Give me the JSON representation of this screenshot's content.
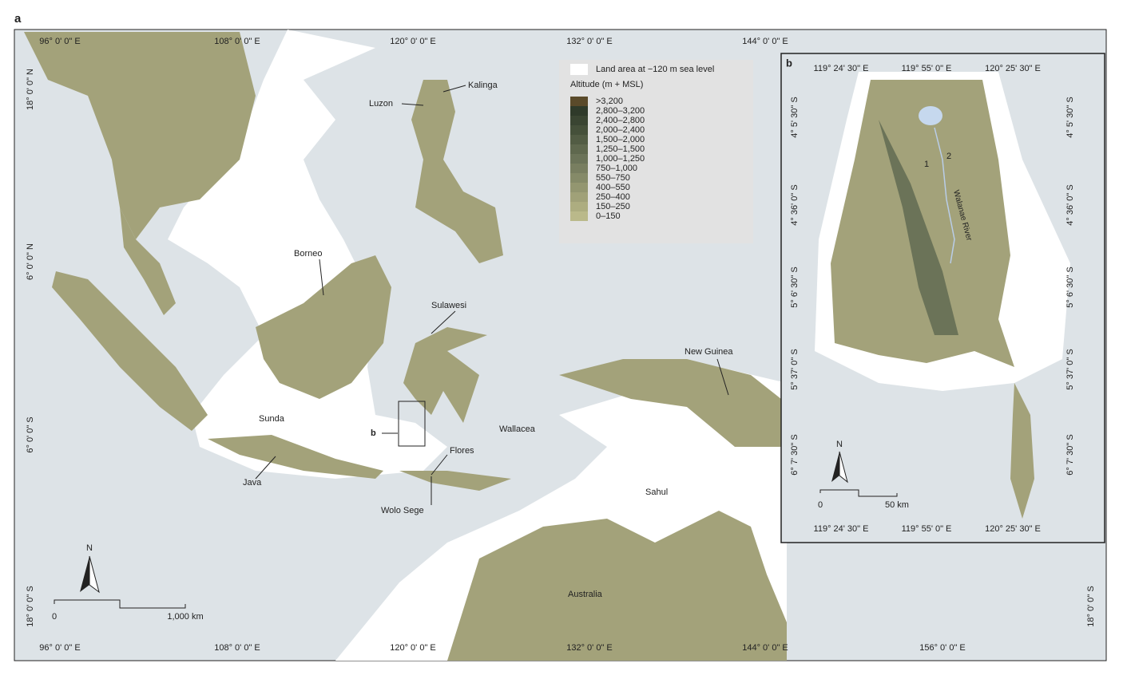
{
  "panel_a": {
    "label": "a",
    "lon_labels": [
      "96° 0' 0\" E",
      "108° 0' 0\" E",
      "120° 0' 0\" E",
      "132° 0' 0\" E",
      "144° 0' 0\" E",
      "156° 0' 0\" E"
    ],
    "lat_labels": [
      "18° 0' 0\" N",
      "6° 0' 0\" N",
      "6° 0' 0\" S",
      "18° 0' 0\" S"
    ],
    "places": [
      "Kalinga",
      "Luzon",
      "Borneo",
      "Sulawesi",
      "New Guinea",
      "Sunda",
      "Wallacea",
      "b",
      "Flores",
      "Java",
      "Wolo Sege",
      "Sahul",
      "Australia"
    ],
    "north": "N",
    "scale_labels": [
      "0",
      "1,000 km"
    ]
  },
  "legend": {
    "land_area": "Land area at −120 m sea level",
    "title": "Altitude (m + MSL)",
    "classes": [
      {
        "label": ">3,200",
        "color": "#5a4a2a"
      },
      {
        "label": "2,800–3,200",
        "color": "#2f3a2a"
      },
      {
        "label": "2,400–2,800",
        "color": "#3a4532"
      },
      {
        "label": "2,000–2,400",
        "color": "#45503a"
      },
      {
        "label": "1,500–2,000",
        "color": "#525c44"
      },
      {
        "label": "1,250–1,500",
        "color": "#5f684e"
      },
      {
        "label": "1,000–1,250",
        "color": "#6b7358"
      },
      {
        "label": "750–1,000",
        "color": "#787e60"
      },
      {
        "label": "550–750",
        "color": "#858a68"
      },
      {
        "label": "400–550",
        "color": "#939670"
      },
      {
        "label": "250–400",
        "color": "#a0a178"
      },
      {
        "label": "150–250",
        "color": "#adad80"
      },
      {
        "label": "0–150",
        "color": "#bab98a"
      }
    ]
  },
  "panel_b": {
    "label": "b",
    "lon_labels": [
      "119° 24' 30\" E",
      "119° 55' 0\" E",
      "120° 25' 30\" E"
    ],
    "lat_labels": [
      "4° 5' 30\" S",
      "4° 36' 0\" S",
      "5° 6' 30\" S",
      "5° 37' 0\" S",
      "6° 7' 30\" S"
    ],
    "sites": [
      "1",
      "2"
    ],
    "river": "Walanae River",
    "north": "N",
    "scale_labels": [
      "0",
      "50 km"
    ]
  }
}
